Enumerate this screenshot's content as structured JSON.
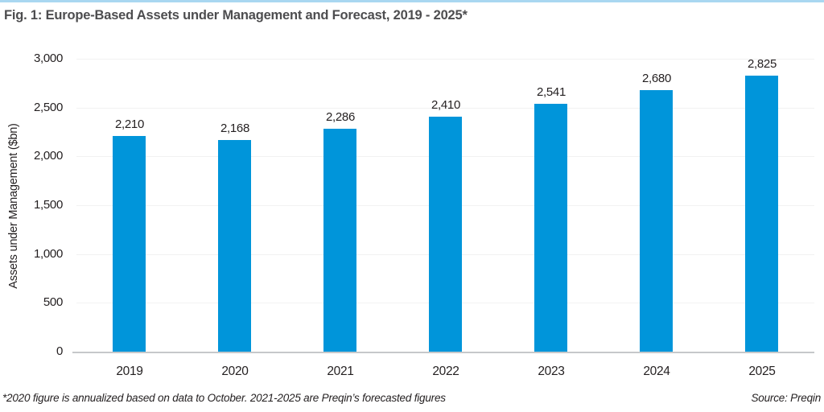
{
  "page": {
    "title": "Fig. 1: Europe-Based Assets under Management and Forecast, 2019 - 2025*",
    "footnote": "*2020 figure is annualized based on data to October. 2021-2025 are Preqin’s forecasted figures",
    "source": "Source: Preqin"
  },
  "colors": {
    "bar": "#0095DA",
    "top_border": "#A9D7F1",
    "title_text": "#4D4D4F",
    "body_text": "#231F20",
    "gridline": "#F2F2F2",
    "axis_line": "#C6C8CA"
  },
  "chart_data": {
    "type": "bar",
    "title": "Fig. 1: Europe-Based Assets under Management and Forecast, 2019 - 2025*",
    "categories": [
      "2019",
      "2020",
      "2021",
      "2022",
      "2023",
      "2024",
      "2025"
    ],
    "values": [
      2210,
      2168,
      2286,
      2410,
      2541,
      2680,
      2825
    ],
    "value_labels": [
      "2,210",
      "2,168",
      "2,286",
      "2,410",
      "2,541",
      "2,680",
      "2,825"
    ],
    "xlabel": "",
    "ylabel": "Assets under Management ($bn)",
    "ylim": [
      0,
      3000
    ],
    "yticks": [
      0,
      500,
      1000,
      1500,
      2000,
      2500,
      3000
    ],
    "ytick_labels": [
      "0",
      "500",
      "1,000",
      "1,500",
      "2,000",
      "2,500",
      "3,000"
    ],
    "grid": "horizontal",
    "legend": "none",
    "bar_color": "#0095DA"
  }
}
